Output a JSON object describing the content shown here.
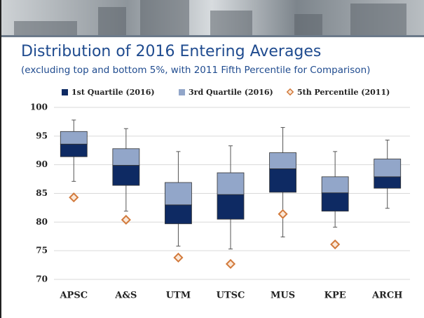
{
  "chart_data": {
    "type": "box",
    "title": "Distribution of 2016 Entering Averages",
    "subtitle": "(excluding top and bottom 5%, with 2011 Fifth Percentile for Comparison)",
    "categories": [
      "APSC",
      "A&S",
      "UTM",
      "UTSC",
      "MUS",
      "KPE",
      "ARCH"
    ],
    "min": [
      87.1,
      81.9,
      75.8,
      75.3,
      77.4,
      79.1,
      82.4
    ],
    "q1": [
      91.4,
      86.4,
      79.7,
      80.5,
      85.2,
      81.9,
      85.9
    ],
    "median": [
      93.6,
      89.9,
      83.0,
      84.8,
      89.3,
      85.1,
      87.9
    ],
    "q3": [
      95.8,
      92.8,
      86.9,
      88.6,
      92.1,
      87.9,
      91.0
    ],
    "max": [
      97.8,
      96.3,
      92.3,
      93.3,
      96.5,
      92.3,
      94.3
    ],
    "series": [
      {
        "name": "1st Quartile (2016)",
        "color": "#0e2a63"
      },
      {
        "name": "3rd Quartile (2016)",
        "color": "#92a6c9"
      },
      {
        "name": "5th Percentile (2011)",
        "color": "#d27a3c",
        "values": [
          84.3,
          80.4,
          73.8,
          72.7,
          81.4,
          76.1,
          null
        ]
      }
    ],
    "ylim": [
      70,
      100
    ],
    "yticks": [
      70,
      75,
      80,
      85,
      90,
      95,
      100
    ],
    "grid": true
  }
}
